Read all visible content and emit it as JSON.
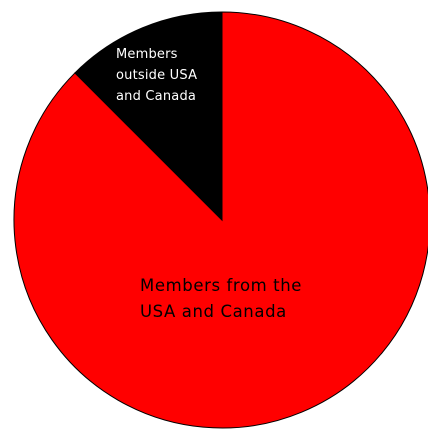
{
  "chart_data": {
    "type": "pie",
    "title": "",
    "slices": [
      {
        "label_lines": [
          "Members from the",
          "USA and Canada"
        ],
        "value": 87.5,
        "color": "#ff0000",
        "text_color": "#000000"
      },
      {
        "label_lines": [
          "Members",
          "outside USA",
          "and Canada"
        ],
        "value": 12.5,
        "color": "#000000",
        "text_color": "#ffffff"
      }
    ],
    "start": "12 o'clock",
    "direction": "clockwise",
    "legend": "none"
  }
}
